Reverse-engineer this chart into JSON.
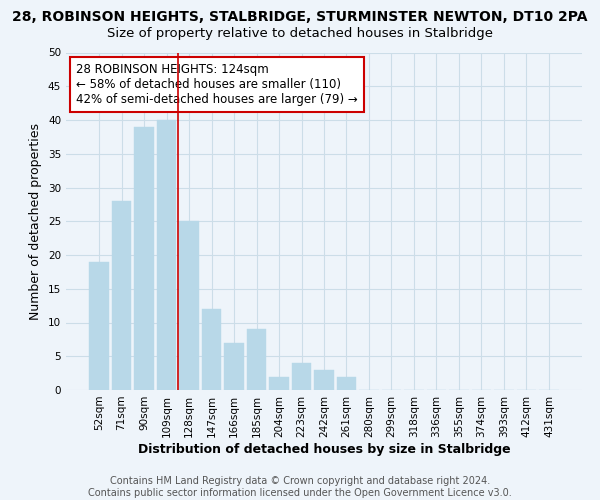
{
  "title_line1": "28, ROBINSON HEIGHTS, STALBRIDGE, STURMINSTER NEWTON, DT10 2PA",
  "title_line2": "Size of property relative to detached houses in Stalbridge",
  "xlabel": "Distribution of detached houses by size in Stalbridge",
  "ylabel": "Number of detached properties",
  "bar_labels": [
    "52sqm",
    "71sqm",
    "90sqm",
    "109sqm",
    "128sqm",
    "147sqm",
    "166sqm",
    "185sqm",
    "204sqm",
    "223sqm",
    "242sqm",
    "261sqm",
    "280sqm",
    "299sqm",
    "318sqm",
    "336sqm",
    "355sqm",
    "374sqm",
    "393sqm",
    "412sqm",
    "431sqm"
  ],
  "bar_values": [
    19,
    28,
    39,
    40,
    25,
    12,
    7,
    9,
    2,
    4,
    3,
    2,
    0,
    0,
    0,
    0,
    0,
    0,
    0,
    0,
    0
  ],
  "bar_color": "#b8d8e8",
  "bar_edge_color": "#b8d8e8",
  "vline_x_index": 3.5,
  "vline_color": "#cc0000",
  "annotation_line1": "28 ROBINSON HEIGHTS: 124sqm",
  "annotation_line2": "← 58% of detached houses are smaller (110)",
  "annotation_line3": "42% of semi-detached houses are larger (79) →",
  "annotation_box_color": "white",
  "annotation_box_edgecolor": "#cc0000",
  "ylim": [
    0,
    50
  ],
  "yticks": [
    0,
    5,
    10,
    15,
    20,
    25,
    30,
    35,
    40,
    45,
    50
  ],
  "grid_color": "#ccdde8",
  "background_color": "#eef4fa",
  "footer_text": "Contains HM Land Registry data © Crown copyright and database right 2024.\nContains public sector information licensed under the Open Government Licence v3.0.",
  "title_fontsize": 10,
  "subtitle_fontsize": 9.5,
  "axis_label_fontsize": 9,
  "tick_fontsize": 7.5,
  "annotation_fontsize": 8.5,
  "footer_fontsize": 7
}
